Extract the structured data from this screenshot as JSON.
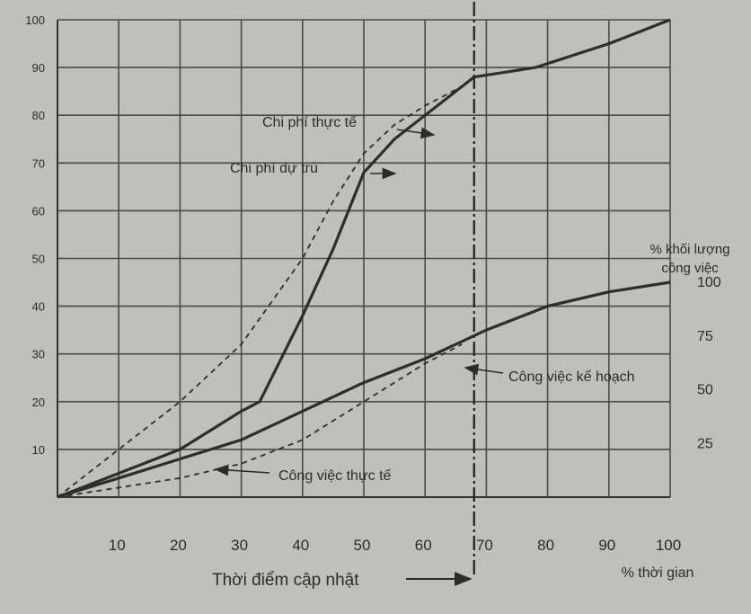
{
  "chart_data": {
    "type": "line",
    "x_axis": {
      "ticks": [
        10,
        20,
        30,
        40,
        50,
        60,
        70,
        80,
        90,
        100
      ],
      "label": "% thời gian",
      "range": [
        0,
        100
      ]
    },
    "y_axis_left": {
      "ticks": [
        10,
        20,
        30,
        40,
        50,
        60,
        70,
        80,
        90,
        100
      ],
      "range": [
        0,
        100
      ]
    },
    "y_axis_right": {
      "label": "% khối lượng công việc",
      "ticks": [
        25,
        50,
        75,
        100
      ],
      "range": [
        0,
        100
      ]
    },
    "series": [
      {
        "name": "Chi phí thực tế",
        "style": "dashed",
        "color": "#2d2d2d",
        "points": [
          [
            0,
            0
          ],
          [
            10,
            10
          ],
          [
            20,
            20
          ],
          [
            30,
            32
          ],
          [
            40,
            50
          ],
          [
            45,
            62
          ],
          [
            50,
            72
          ],
          [
            55,
            78
          ],
          [
            60,
            82
          ],
          [
            66,
            86
          ]
        ]
      },
      {
        "name": "Chi phí dự trù",
        "style": "solid",
        "color": "#2d2d2d",
        "points": [
          [
            0,
            0
          ],
          [
            10,
            5
          ],
          [
            20,
            10
          ],
          [
            30,
            18
          ],
          [
            33,
            20
          ],
          [
            40,
            38
          ],
          [
            45,
            52
          ],
          [
            50,
            68
          ],
          [
            55,
            75
          ],
          [
            62,
            82
          ],
          [
            68,
            88
          ],
          [
            78,
            90
          ],
          [
            90,
            95
          ],
          [
            100,
            100
          ]
        ]
      },
      {
        "name": "Công việc kế hoạch",
        "style": "solid",
        "color": "#2d2d2d",
        "points": [
          [
            0,
            0
          ],
          [
            10,
            4
          ],
          [
            20,
            8
          ],
          [
            30,
            12
          ],
          [
            40,
            18
          ],
          [
            50,
            24
          ],
          [
            60,
            29
          ],
          [
            70,
            35
          ],
          [
            80,
            40
          ],
          [
            90,
            43
          ],
          [
            100,
            45
          ]
        ]
      },
      {
        "name": "Công việc thực tế",
        "style": "dashed",
        "color": "#2d2d2d",
        "points": [
          [
            0,
            0
          ],
          [
            10,
            2
          ],
          [
            20,
            4
          ],
          [
            30,
            7
          ],
          [
            40,
            12
          ],
          [
            50,
            20
          ],
          [
            60,
            28
          ],
          [
            66,
            32
          ]
        ]
      }
    ],
    "status_line": {
      "x": 68,
      "label": "Thời điểm cập nhật"
    },
    "annotations": [
      {
        "text": "Chi phí thực tế"
      },
      {
        "text": "Chi phí dự trù"
      },
      {
        "text": "Công việc kế hoạch"
      },
      {
        "text": "Công việc thực tế"
      }
    ],
    "grid": true
  }
}
